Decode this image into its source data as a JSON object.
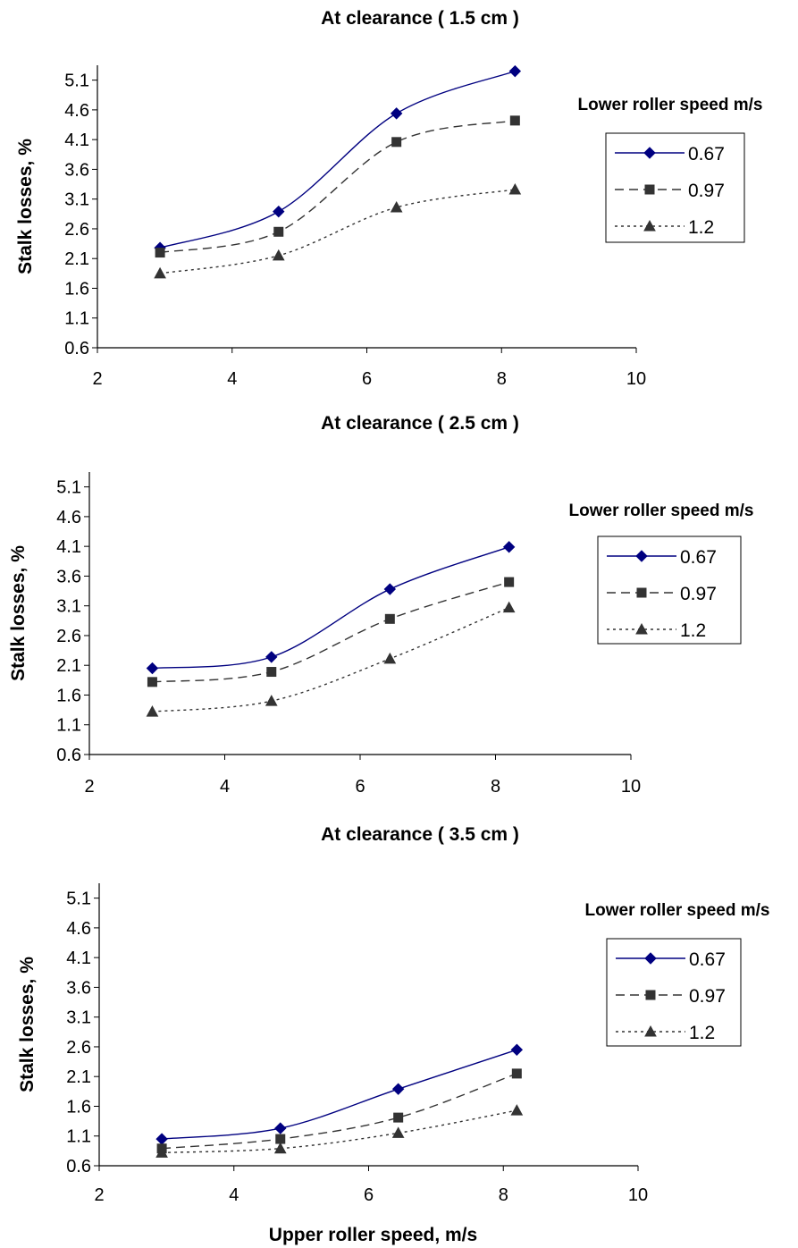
{
  "chart_data": [
    {
      "type": "line",
      "title": "At clearance  ( 1.5 cm )",
      "ylabel": "Stalk losses, %",
      "xlabel": "",
      "xlim": [
        2,
        10
      ],
      "ylim": [
        0.6,
        5.35
      ],
      "x_ticks": [
        2,
        4,
        6,
        8,
        10
      ],
      "y_ticks": [
        0.6,
        1.1,
        1.6,
        2.1,
        2.6,
        3.1,
        3.6,
        4.1,
        4.6,
        5.1
      ],
      "legend_title": "Lower roller speed m/s",
      "legend_position": "right",
      "grid": false,
      "series": [
        {
          "name": "0.67",
          "x": [
            2.93,
            4.69,
            6.44,
            8.2
          ],
          "values": [
            2.28,
            2.89,
            4.54,
            5.25
          ],
          "color": "#000080",
          "marker": "diamond",
          "dash": "solid"
        },
        {
          "name": "0.97",
          "x": [
            2.93,
            4.69,
            6.44,
            8.2
          ],
          "values": [
            2.2,
            2.55,
            4.06,
            4.42
          ],
          "color": "#333333",
          "marker": "square",
          "dash": "dashed"
        },
        {
          "name": "1.2",
          "x": [
            2.93,
            4.69,
            6.44,
            8.2
          ],
          "values": [
            1.85,
            2.15,
            2.96,
            3.26
          ],
          "color": "#333333",
          "marker": "triangle",
          "dash": "dotted"
        }
      ]
    },
    {
      "type": "line",
      "title": "At clearance  ( 2.5 cm )",
      "ylabel": "Stalk losses, %",
      "xlabel": "",
      "xlim": [
        2,
        10
      ],
      "ylim": [
        0.6,
        5.35
      ],
      "x_ticks": [
        2,
        4,
        6,
        8,
        10
      ],
      "y_ticks": [
        0.6,
        1.1,
        1.6,
        2.1,
        2.6,
        3.1,
        3.6,
        4.1,
        4.6,
        5.1
      ],
      "legend_title": "Lower roller speed m/s",
      "legend_position": "right",
      "grid": false,
      "series": [
        {
          "name": "0.67",
          "x": [
            2.93,
            4.69,
            6.44,
            8.2
          ],
          "values": [
            2.05,
            2.24,
            3.38,
            4.09
          ],
          "color": "#000080",
          "marker": "diamond",
          "dash": "solid"
        },
        {
          "name": "0.97",
          "x": [
            2.93,
            4.69,
            6.44,
            8.2
          ],
          "values": [
            1.82,
            1.99,
            2.88,
            3.5
          ],
          "color": "#333333",
          "marker": "square",
          "dash": "dashed"
        },
        {
          "name": "1.2",
          "x": [
            2.93,
            4.69,
            6.44,
            8.2
          ],
          "values": [
            1.32,
            1.5,
            2.21,
            3.07
          ],
          "color": "#333333",
          "marker": "triangle",
          "dash": "dotted"
        }
      ]
    },
    {
      "type": "line",
      "title": "At clearance  ( 3.5 cm )",
      "ylabel": "Stalk losses, %",
      "xlabel": "Upper roller speed, m/s",
      "xlim": [
        2,
        10
      ],
      "ylim": [
        0.6,
        5.35
      ],
      "x_ticks": [
        2,
        4,
        6,
        8,
        10
      ],
      "y_ticks": [
        0.6,
        1.1,
        1.6,
        2.1,
        2.6,
        3.1,
        3.6,
        4.1,
        4.6,
        5.1
      ],
      "legend_title": "Lower roller speed m/s",
      "legend_position": "right",
      "grid": false,
      "series": [
        {
          "name": "0.67",
          "x": [
            2.93,
            4.69,
            6.44,
            8.2
          ],
          "values": [
            1.05,
            1.23,
            1.89,
            2.55
          ],
          "color": "#000080",
          "marker": "diamond",
          "dash": "solid"
        },
        {
          "name": "0.97",
          "x": [
            2.93,
            4.69,
            6.44,
            8.2
          ],
          "values": [
            0.89,
            1.05,
            1.41,
            2.15
          ],
          "color": "#333333",
          "marker": "square",
          "dash": "dashed"
        },
        {
          "name": "1.2",
          "x": [
            2.93,
            4.69,
            6.44,
            8.2
          ],
          "values": [
            0.82,
            0.89,
            1.15,
            1.53
          ],
          "color": "#333333",
          "marker": "triangle",
          "dash": "dotted"
        }
      ]
    }
  ]
}
